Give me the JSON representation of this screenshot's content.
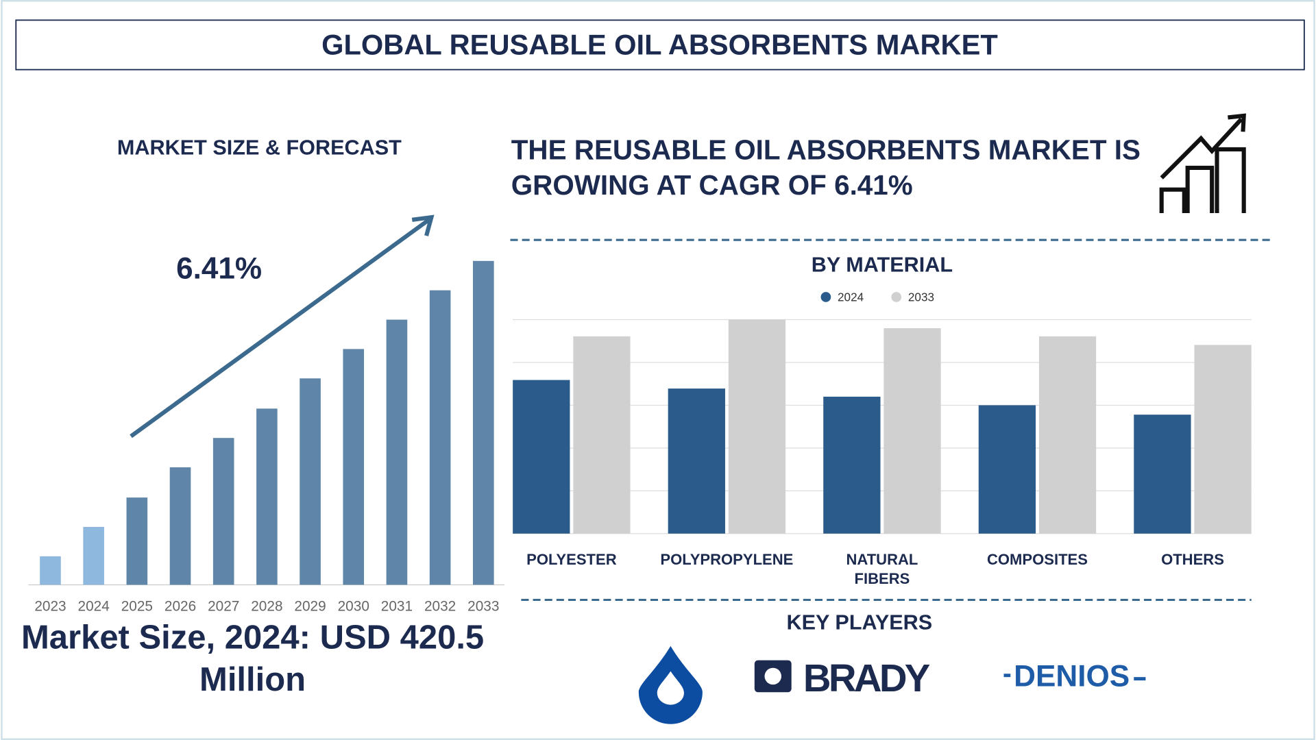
{
  "title": "GLOBAL REUSABLE OIL ABSORBENTS MARKET",
  "market_size": {
    "heading": "MARKET SIZE & FORECAST",
    "cagr_label": "6.41%",
    "summary": "Market Size, 2024: USD 420.5 Million"
  },
  "headline": "THE REUSABLE OIL ABSORBENTS MARKET IS GROWING AT CAGR OF 6.41%",
  "chart_data": [
    {
      "type": "bar",
      "categories": [
        "2023",
        "2024",
        "2025",
        "2026",
        "2027",
        "2028",
        "2029",
        "2030",
        "2031",
        "2032",
        "2033"
      ],
      "values": [
        34,
        69,
        104,
        140,
        175,
        210,
        246,
        281,
        316,
        351,
        386
      ],
      "colors": [
        "#8fb8df",
        "#8fb8df",
        "#5f86a8",
        "#5f86a8",
        "#5f86a8",
        "#5f86a8",
        "#5f86a8",
        "#5f86a8",
        "#5f86a8",
        "#5f86a8",
        "#5f86a8"
      ],
      "ylim": [
        0,
        400
      ]
    },
    {
      "type": "grouped-bar",
      "title": "BY MATERIAL",
      "categories": [
        "POLYESTER",
        "POLYPROPYLENE",
        "NATURAL FIBERS",
        "COMPOSITES",
        "OTHERS"
      ],
      "series": [
        {
          "name": "2024",
          "color": "#2a5b8a",
          "values": [
            3.59,
            3.39,
            3.2,
            3.0,
            2.78
          ]
        },
        {
          "name": "2033",
          "color": "#d0d0d0",
          "values": [
            4.61,
            5.0,
            4.8,
            4.61,
            4.41
          ]
        }
      ],
      "ylim": [
        0,
        5
      ],
      "yticks": [
        0,
        1,
        2,
        3,
        4,
        5
      ],
      "grid": true,
      "legend": "top"
    }
  ],
  "key_players": {
    "title": "KEY PLAYERS",
    "logos": [
      "BRADY",
      "DENIOS"
    ]
  }
}
